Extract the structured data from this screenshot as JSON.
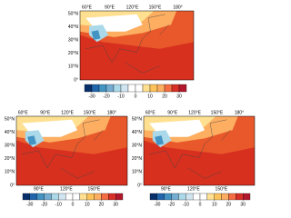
{
  "panels": [
    {
      "lon_top": [
        "60°E",
        "90°E",
        "120°E",
        "150°E",
        "180°"
      ],
      "lat": [
        "50°N",
        "40°N",
        "30°N",
        "20°N",
        "10°N",
        "0°"
      ],
      "lon_bottom": [],
      "colorbar": {
        "ticks": [
          -30,
          -20,
          -10,
          0,
          10,
          20,
          30
        ]
      }
    },
    {
      "lon_top": [
        "60°E",
        "90°E",
        "120°E",
        "150°E",
        "180°"
      ],
      "lat": [
        "50°N",
        "40°N",
        "30°N",
        "20°N",
        "10°N",
        "0°"
      ],
      "lon_bottom": [
        "90°E",
        "120°E",
        "150°E"
      ],
      "colorbar": {
        "ticks": [
          -30,
          -20,
          -10,
          0,
          10,
          20,
          30
        ]
      }
    },
    {
      "lon_top": [
        "60°E",
        "90°E",
        "120°E",
        "150°E",
        "180°"
      ],
      "lat": [
        "50°N",
        "40°N",
        "30°N",
        "20°N",
        "10°N",
        "0°"
      ],
      "lon_bottom": [
        "90°E",
        "120°E",
        "150°E"
      ],
      "colorbar": {
        "ticks": [
          -30,
          -20,
          -10,
          0,
          10,
          20,
          30
        ]
      }
    }
  ],
  "colorbar_colors": [
    "#08306b",
    "#2166ac",
    "#4393c3",
    "#74add1",
    "#abd9e9",
    "#d1e5f0",
    "#ffffff",
    "#ffffff",
    "#fee090",
    "#fdc35a",
    "#fdae61",
    "#f46d43",
    "#d73027",
    "#b2182b"
  ]
}
